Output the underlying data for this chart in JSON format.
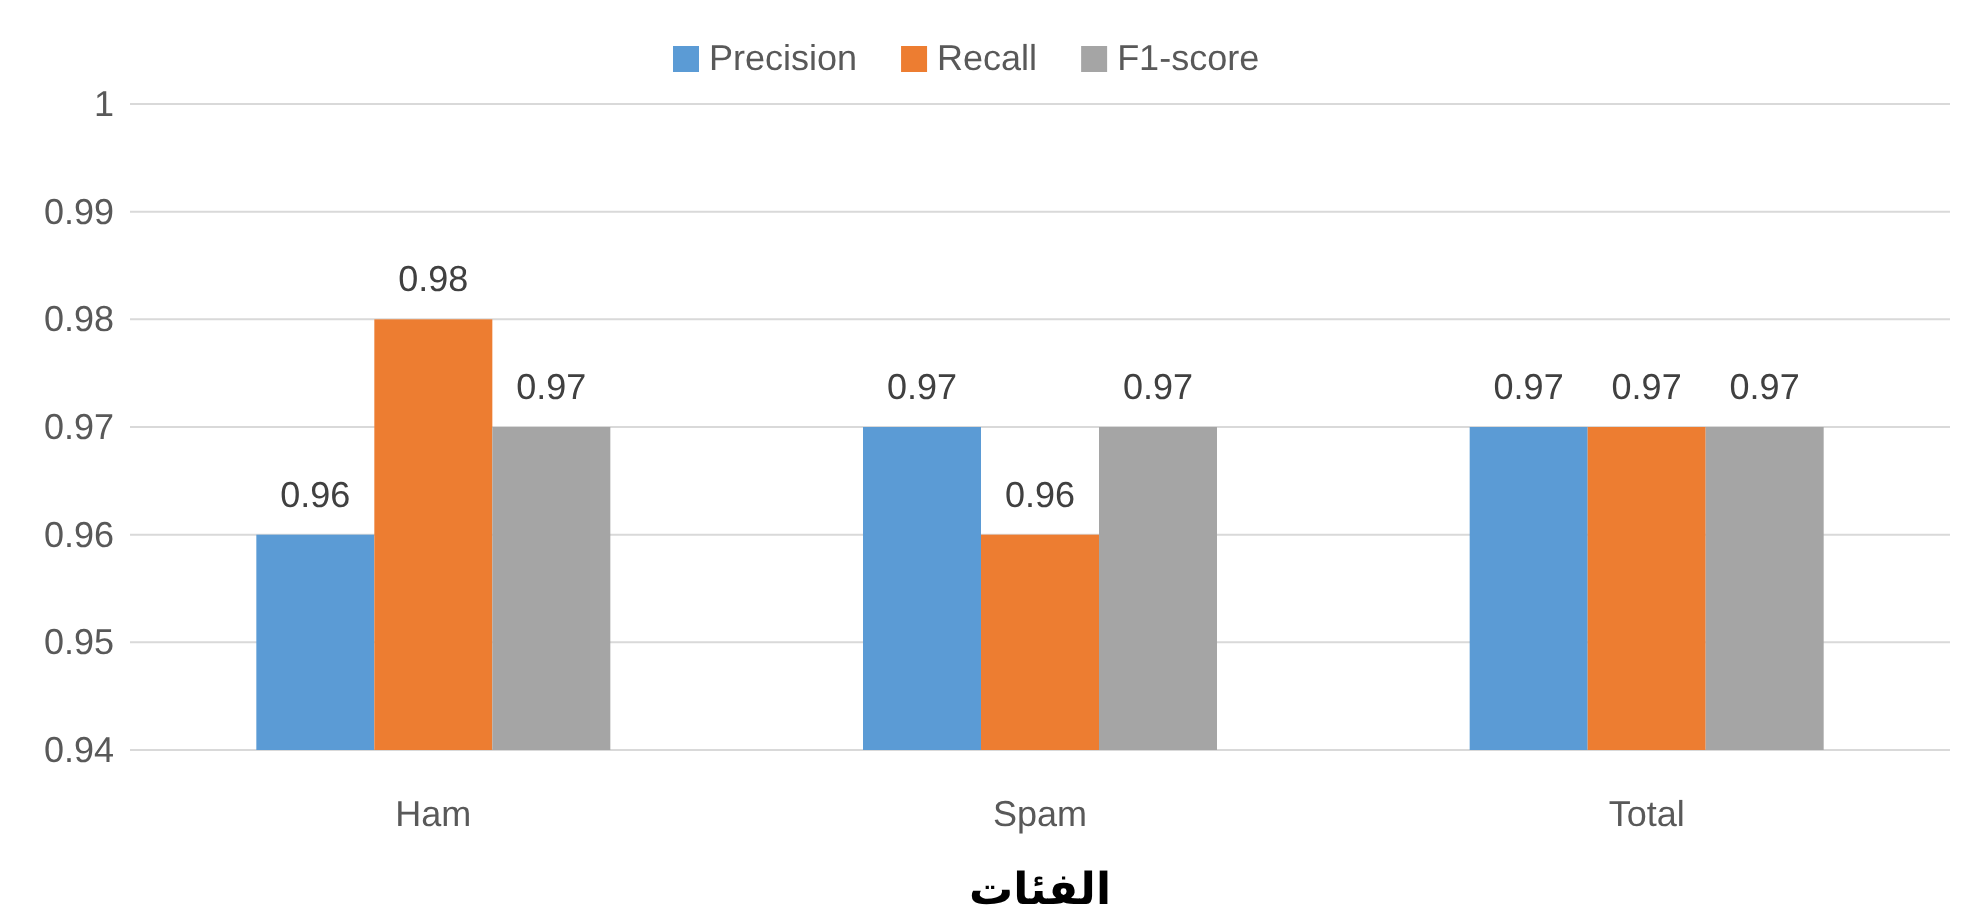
{
  "chart_data": {
    "type": "bar",
    "xlabel": "الفئات",
    "categories": [
      "Ham",
      "Spam",
      "Total"
    ],
    "series": [
      {
        "name": "Precision",
        "color": "#5b9bd5",
        "values": [
          0.96,
          0.97,
          0.97
        ]
      },
      {
        "name": "Recall",
        "color": "#ed7d31",
        "values": [
          0.98,
          0.96,
          0.97
        ]
      },
      {
        "name": "F1-score",
        "color": "#a5a5a5",
        "values": [
          0.97,
          0.97,
          0.97
        ]
      }
    ],
    "ylim": [
      0.94,
      1
    ],
    "yticks": [
      0.94,
      0.95,
      0.96,
      0.97,
      0.98,
      0.99,
      1
    ],
    "grid": "y",
    "legend": "top",
    "data_labels": true
  }
}
